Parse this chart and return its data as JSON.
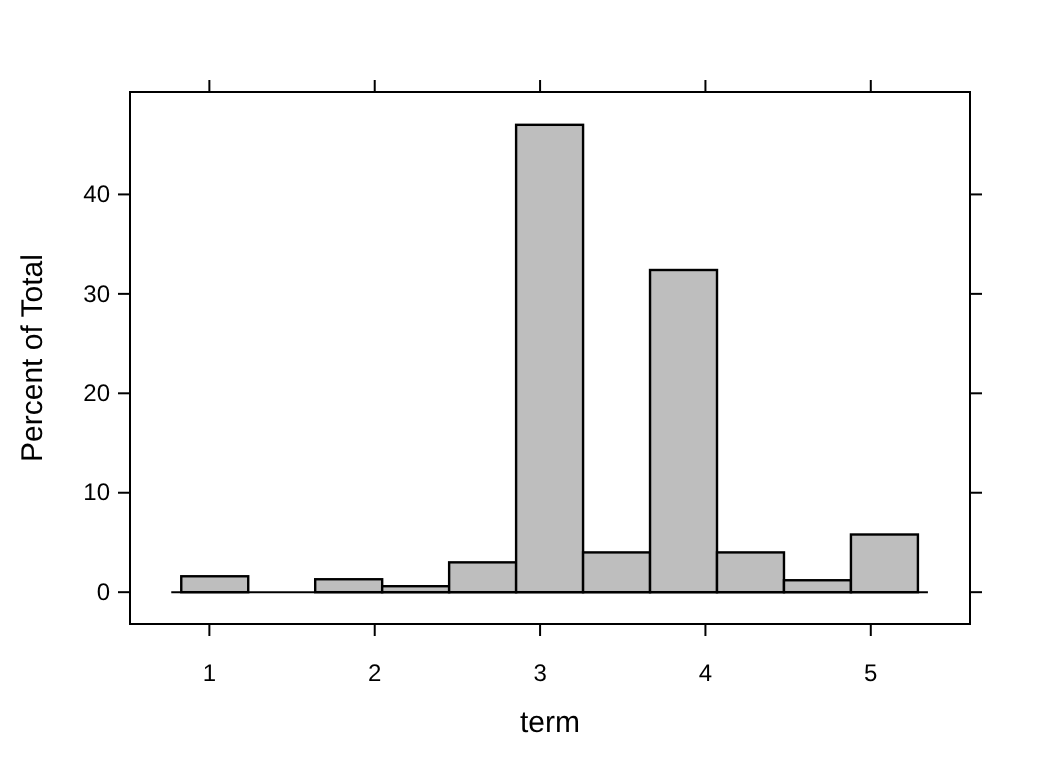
{
  "chart_data": {
    "type": "histogram",
    "xlabel": "term",
    "ylabel": "Percent of Total",
    "bins": [
      0.83,
      1.235,
      1.64,
      2.045,
      2.45,
      2.855,
      3.26,
      3.665,
      4.07,
      4.475,
      4.88,
      5.285
    ],
    "values": [
      1.6,
      0,
      1.3,
      0.6,
      3.0,
      47.0,
      4.0,
      32.4,
      4.0,
      1.2,
      5.8
    ],
    "color": "#bebebe",
    "xlim": [
      0.52,
      5.6
    ],
    "xticks": [
      1,
      2,
      3,
      4,
      5
    ],
    "ylim": [
      -3.2,
      50.3
    ],
    "yticks": [
      0,
      10,
      20,
      30,
      40
    ],
    "ref_lines": [
      {
        "axis": "y",
        "value": 0
      }
    ]
  }
}
